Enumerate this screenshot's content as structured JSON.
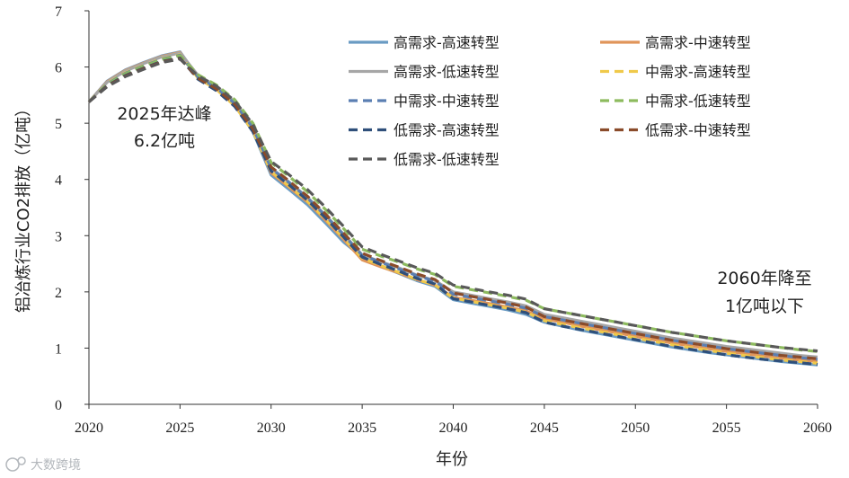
{
  "chart_data": {
    "type": "line",
    "title": "",
    "xlabel": "年份",
    "ylabel": "铝冶炼行业CO2排放（亿吨）",
    "xlim": [
      2020,
      2060
    ],
    "ylim": [
      0,
      7
    ],
    "xticks": [
      "2020",
      "2025",
      "2030",
      "2035",
      "2040",
      "2045",
      "2050",
      "2055",
      "2060"
    ],
    "yticks": [
      "0",
      "1",
      "2",
      "3",
      "4",
      "5",
      "6",
      "7"
    ],
    "x": [
      2020,
      2021,
      2022,
      2023,
      2024,
      2025,
      2026,
      2027,
      2028,
      2029,
      2030,
      2031,
      2032,
      2033,
      2034,
      2035,
      2036,
      2037,
      2038,
      2039,
      2040,
      2041,
      2042,
      2043,
      2044,
      2045,
      2046,
      2047,
      2048,
      2049,
      2050,
      2051,
      2052,
      2053,
      2054,
      2055,
      2056,
      2057,
      2058,
      2059,
      2060
    ],
    "series": [
      {
        "name": "高需求-高速转型",
        "color": "#6a9bc3",
        "dash": "solid",
        "values": [
          5.38,
          5.75,
          5.95,
          6.08,
          6.2,
          6.27,
          5.82,
          5.62,
          5.32,
          4.85,
          4.08,
          3.82,
          3.55,
          3.22,
          2.88,
          2.62,
          2.46,
          2.33,
          2.2,
          2.1,
          1.86,
          1.8,
          1.74,
          1.68,
          1.6,
          1.46,
          1.39,
          1.32,
          1.26,
          1.2,
          1.14,
          1.08,
          1.02,
          0.97,
          0.92,
          0.88,
          0.84,
          0.8,
          0.76,
          0.73,
          0.7
        ]
      },
      {
        "name": "高需求-中速转型",
        "color": "#e0955a",
        "dash": "solid",
        "values": [
          5.38,
          5.74,
          5.94,
          6.07,
          6.19,
          6.26,
          5.82,
          5.62,
          5.33,
          4.88,
          4.12,
          3.86,
          3.6,
          3.27,
          2.93,
          2.57,
          2.45,
          2.34,
          2.22,
          2.12,
          1.9,
          1.85,
          1.79,
          1.73,
          1.66,
          1.52,
          1.46,
          1.39,
          1.33,
          1.27,
          1.21,
          1.15,
          1.09,
          1.04,
          0.99,
          0.94,
          0.9,
          0.86,
          0.82,
          0.79,
          0.76
        ]
      },
      {
        "name": "高需求-低速转型",
        "color": "#a6a6a6",
        "dash": "solid",
        "values": [
          5.38,
          5.73,
          5.93,
          6.06,
          6.18,
          6.25,
          5.85,
          5.66,
          5.38,
          4.95,
          4.2,
          3.95,
          3.68,
          3.36,
          3.02,
          2.66,
          2.54,
          2.43,
          2.3,
          2.2,
          2.0,
          1.94,
          1.88,
          1.82,
          1.75,
          1.6,
          1.54,
          1.48,
          1.42,
          1.36,
          1.3,
          1.24,
          1.18,
          1.13,
          1.08,
          1.03,
          0.99,
          0.95,
          0.91,
          0.87,
          0.84
        ]
      },
      {
        "name": "中需求-高速转型",
        "color": "#f0c94a",
        "dash": "dashed",
        "values": [
          5.38,
          5.71,
          5.9,
          6.03,
          6.15,
          6.22,
          5.8,
          5.6,
          5.31,
          4.86,
          4.14,
          3.88,
          3.61,
          3.29,
          2.95,
          2.6,
          2.47,
          2.35,
          2.22,
          2.12,
          1.89,
          1.83,
          1.77,
          1.71,
          1.64,
          1.49,
          1.42,
          1.36,
          1.3,
          1.24,
          1.18,
          1.12,
          1.06,
          1.01,
          0.96,
          0.91,
          0.87,
          0.83,
          0.79,
          0.76,
          0.73
        ]
      },
      {
        "name": "中需求-中速转型",
        "color": "#5b7fb2",
        "dash": "dashed",
        "values": [
          5.38,
          5.7,
          5.89,
          6.02,
          6.14,
          6.21,
          5.82,
          5.63,
          5.35,
          4.92,
          4.2,
          3.94,
          3.67,
          3.35,
          3.01,
          2.65,
          2.53,
          2.41,
          2.29,
          2.19,
          1.96,
          1.9,
          1.84,
          1.78,
          1.71,
          1.56,
          1.5,
          1.44,
          1.38,
          1.32,
          1.26,
          1.2,
          1.14,
          1.09,
          1.04,
          0.99,
          0.95,
          0.91,
          0.87,
          0.83,
          0.8
        ]
      },
      {
        "name": "中需求-低速转型",
        "color": "#8dbb5e",
        "dash": "dashed",
        "values": [
          5.38,
          5.69,
          5.88,
          6.01,
          6.13,
          6.2,
          5.86,
          5.68,
          5.42,
          5.0,
          4.3,
          4.05,
          3.78,
          3.46,
          3.12,
          2.76,
          2.64,
          2.53,
          2.41,
          2.31,
          2.1,
          2.04,
          1.98,
          1.92,
          1.85,
          1.7,
          1.64,
          1.58,
          1.52,
          1.46,
          1.4,
          1.34,
          1.28,
          1.23,
          1.18,
          1.13,
          1.09,
          1.05,
          1.01,
          0.97,
          0.94
        ]
      },
      {
        "name": "低需求-高速转型",
        "color": "#2f4f7a",
        "dash": "dashed",
        "values": [
          5.38,
          5.67,
          5.85,
          5.98,
          6.1,
          6.16,
          5.78,
          5.58,
          5.3,
          4.85,
          4.15,
          3.9,
          3.63,
          3.31,
          2.97,
          2.62,
          2.49,
          2.37,
          2.24,
          2.14,
          1.88,
          1.82,
          1.76,
          1.7,
          1.63,
          1.46,
          1.39,
          1.33,
          1.27,
          1.21,
          1.15,
          1.09,
          1.03,
          0.98,
          0.93,
          0.88,
          0.84,
          0.8,
          0.77,
          0.74,
          0.71
        ]
      },
      {
        "name": "低需求-中速转型",
        "color": "#8a4b2a",
        "dash": "dashed",
        "values": [
          5.38,
          5.66,
          5.84,
          5.97,
          6.09,
          6.15,
          5.8,
          5.61,
          5.34,
          4.9,
          4.22,
          3.97,
          3.7,
          3.38,
          3.04,
          2.69,
          2.56,
          2.44,
          2.32,
          2.22,
          1.98,
          1.92,
          1.86,
          1.8,
          1.73,
          1.56,
          1.5,
          1.44,
          1.38,
          1.32,
          1.26,
          1.2,
          1.14,
          1.09,
          1.04,
          0.99,
          0.95,
          0.91,
          0.87,
          0.84,
          0.81
        ]
      },
      {
        "name": "低需求-低速转型",
        "color": "#595959",
        "dash": "dashed",
        "values": [
          5.38,
          5.65,
          5.83,
          5.96,
          6.08,
          6.14,
          5.84,
          5.66,
          5.4,
          4.98,
          4.32,
          4.08,
          3.82,
          3.5,
          3.16,
          2.8,
          2.67,
          2.55,
          2.43,
          2.33,
          2.12,
          2.06,
          2.0,
          1.94,
          1.87,
          1.7,
          1.64,
          1.58,
          1.52,
          1.46,
          1.4,
          1.34,
          1.28,
          1.23,
          1.18,
          1.13,
          1.09,
          1.05,
          1.01,
          0.98,
          0.95
        ]
      }
    ],
    "annotations": [
      {
        "lines": [
          "2025年达峰",
          "6.2亿吨"
        ]
      },
      {
        "lines": [
          "2060年降至",
          "1亿吨以下"
        ]
      }
    ],
    "legend_position": "top-right"
  },
  "watermark": "大数跨境"
}
